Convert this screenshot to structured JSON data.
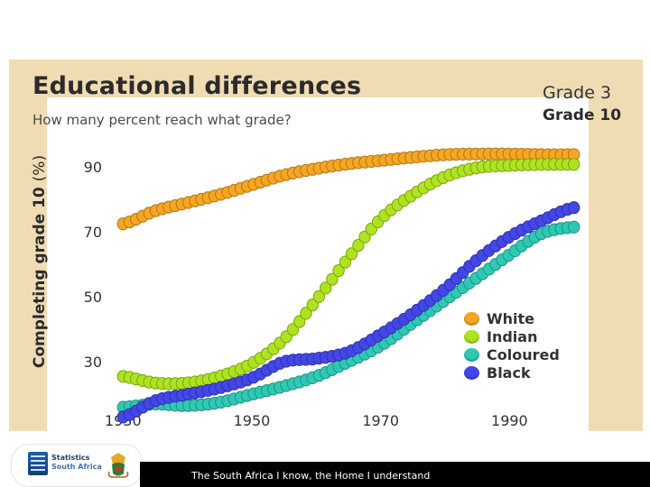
{
  "chart_data": {
    "type": "line",
    "title": "Educational differences",
    "subtitle": "How many percent reach what grade?",
    "grade_options": [
      "Grade 3",
      "Grade 10"
    ],
    "selected_grade": "Grade 10",
    "ylabel": "Completing grade 10",
    "ylabel_unit": "(%)",
    "xlabel": "",
    "xlim": [
      1928,
      2002
    ],
    "ylim": [
      17,
      97
    ],
    "x_ticks": [
      1930,
      1950,
      1970,
      1990
    ],
    "y_ticks": [
      30,
      50,
      70,
      90
    ],
    "marker": "circle",
    "grid": false,
    "legend_position": "bottom-right",
    "series": [
      {
        "name": "White",
        "color": "#f6a623",
        "x": [
          1930,
          1935,
          1940,
          1945,
          1950,
          1955,
          1960,
          1965,
          1970,
          1975,
          1980,
          1985,
          1990,
          1995,
          2000
        ],
        "y": [
          72.5,
          76.5,
          79,
          81.5,
          84.5,
          87.5,
          89.5,
          91,
          92,
          93,
          93.8,
          94,
          94,
          93.8,
          93.8
        ]
      },
      {
        "name": "Indian",
        "color": "#aee320",
        "x": [
          1930,
          1935,
          1940,
          1945,
          1950,
          1955,
          1960,
          1965,
          1970,
          1975,
          1980,
          1985,
          1990,
          1995,
          2000
        ],
        "y": [
          25.5,
          23.5,
          23.5,
          25.5,
          29.5,
          37,
          49,
          62,
          74,
          81.5,
          87,
          89.8,
          90.5,
          90.8,
          90.8
        ]
      },
      {
        "name": "Coloured",
        "color": "#2ec9b4",
        "x": [
          1930,
          1935,
          1940,
          1945,
          1950,
          1955,
          1960,
          1965,
          1970,
          1975,
          1980,
          1985,
          1990,
          1995,
          2000
        ],
        "y": [
          16,
          17,
          16.5,
          17.5,
          20,
          22.5,
          25.5,
          30,
          35,
          42,
          49,
          56,
          63,
          69.5,
          71.5
        ]
      },
      {
        "name": "Black",
        "color": "#4347e8",
        "x": [
          1930,
          1935,
          1940,
          1945,
          1950,
          1955,
          1960,
          1965,
          1970,
          1975,
          1980,
          1985,
          1990,
          1995,
          2000
        ],
        "y": [
          13,
          18,
          20,
          22,
          25,
          30,
          31,
          33,
          38.5,
          45,
          52.5,
          61.5,
          68.5,
          73.5,
          77.5
        ]
      }
    ]
  },
  "footer": {
    "tagline": "The South Africa I know, the Home I understand",
    "logo_line1": "Statistics",
    "logo_line2": "South Africa"
  }
}
